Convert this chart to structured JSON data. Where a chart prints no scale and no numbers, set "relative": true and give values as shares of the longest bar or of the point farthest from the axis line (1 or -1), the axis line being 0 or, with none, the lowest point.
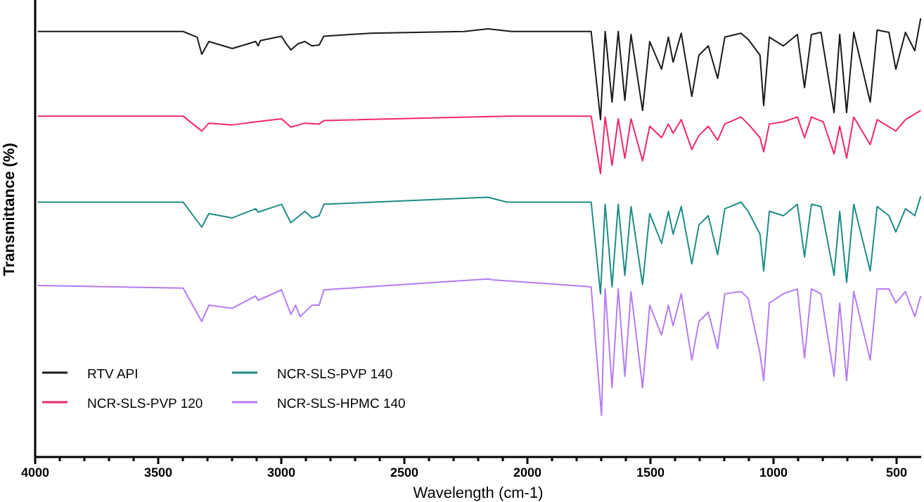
{
  "chart_data": {
    "type": "line",
    "relative": true,
    "xlabel": "Wavelength (cm-1)",
    "ylabel": "Transmittance (%)",
    "xlim": [
      4000,
      400
    ],
    "xticks": [
      4000,
      {
        "value": 3900,
        "label": null
      },
      {
        "value": 3800,
        "label": null
      },
      {
        "value": 3700,
        "label": null
      },
      {
        "value": 3600,
        "label": null
      },
      3500,
      {
        "value": 3400,
        "label": null
      },
      {
        "value": 3300,
        "label": null
      },
      {
        "value": 3200,
        "label": null
      },
      {
        "value": 3100,
        "label": null
      },
      3000,
      {
        "value": 2900,
        "label": null
      },
      {
        "value": 2800,
        "label": null
      },
      {
        "value": 2700,
        "label": null
      },
      {
        "value": 2600,
        "label": null
      },
      2500,
      {
        "value": 2400,
        "label": null
      },
      {
        "value": 2300,
        "label": null
      },
      {
        "value": 2200,
        "label": null
      },
      {
        "value": 2100,
        "label": null
      },
      2000,
      {
        "value": 1900,
        "label": null
      },
      {
        "value": 1800,
        "label": null
      },
      {
        "value": 1700,
        "label": null
      },
      {
        "value": 1600,
        "label": null
      },
      1500,
      {
        "value": 1400,
        "label": null
      },
      {
        "value": 1300,
        "label": null
      },
      {
        "value": 1200,
        "label": null
      },
      {
        "value": 1100,
        "label": null
      },
      1000,
      {
        "value": 900,
        "label": null
      },
      {
        "value": 800,
        "label": null
      },
      {
        "value": 700,
        "label": null
      },
      {
        "value": 600,
        "label": null
      },
      500
    ],
    "legend": "bottom left",
    "marker": "none",
    "line_style": "solid",
    "series": [
      {
        "name": "RTV API",
        "color": "#1a1a1a",
        "x": [
          3990,
          3399,
          3342,
          3323,
          3294,
          3247,
          3199,
          3151,
          3104,
          3094,
          3085,
          2999,
          2980,
          2961,
          2932,
          2904,
          2875,
          2846,
          2827,
          2637,
          2256,
          2160,
          2065,
          1741,
          1703,
          1684,
          1656,
          1631,
          1604,
          1579,
          1532,
          1503,
          1455,
          1427,
          1408,
          1375,
          1332,
          1303,
          1265,
          1227,
          1198,
          1132,
          1103,
          1055,
          1040,
          1017,
          960,
          903,
          874,
          846,
          807,
          754,
          731,
          703,
          674,
          607,
          579,
          531,
          503,
          464,
          426,
          402
        ],
        "values": [
          0.97,
          0.97,
          0.957,
          0.918,
          0.947,
          0.939,
          0.931,
          0.939,
          0.947,
          0.937,
          0.949,
          0.959,
          0.942,
          0.928,
          0.942,
          0.947,
          0.937,
          0.939,
          0.959,
          0.966,
          0.97,
          0.976,
          0.97,
          0.97,
          0.769,
          0.97,
          0.809,
          0.97,
          0.813,
          0.963,
          0.79,
          0.947,
          0.884,
          0.957,
          0.9,
          0.966,
          0.822,
          0.916,
          0.937,
          0.863,
          0.957,
          0.966,
          0.952,
          0.916,
          0.801,
          0.957,
          0.937,
          0.963,
          0.842,
          0.963,
          0.968,
          0.785,
          0.963,
          0.785,
          0.968,
          0.809,
          0.973,
          0.968,
          0.884,
          0.968,
          0.926,
          1
        ]
      },
      {
        "name": "NCR-SLS-PVP 120",
        "color": "#f0286e",
        "x": [
          3990,
          3399,
          3323,
          3294,
          3199,
          3104,
          2999,
          2961,
          2904,
          2846,
          2827,
          2084,
          1741,
          1703,
          1684,
          1656,
          1631,
          1604,
          1579,
          1532,
          1503,
          1455,
          1427,
          1408,
          1375,
          1332,
          1303,
          1265,
          1227,
          1198,
          1132,
          1103,
          1055,
          1040,
          1017,
          960,
          903,
          874,
          846,
          798,
          754,
          731,
          703,
          674,
          607,
          579,
          503,
          464,
          402
        ],
        "values": [
          0.777,
          0.777,
          0.743,
          0.761,
          0.757,
          0.764,
          0.771,
          0.752,
          0.761,
          0.759,
          0.767,
          0.777,
          0.777,
          0.646,
          0.775,
          0.665,
          0.771,
          0.681,
          0.771,
          0.675,
          0.754,
          0.728,
          0.759,
          0.738,
          0.769,
          0.701,
          0.733,
          0.754,
          0.722,
          0.759,
          0.775,
          0.759,
          0.728,
          0.696,
          0.759,
          0.764,
          0.775,
          0.728,
          0.775,
          0.764,
          0.691,
          0.754,
          0.681,
          0.775,
          0.712,
          0.769,
          0.743,
          0.769,
          0.79
        ]
      },
      {
        "name": "NCR-SLS-PVP 140",
        "color": "#1f8c86",
        "x": [
          3990,
          3399,
          3323,
          3294,
          3199,
          3104,
          3094,
          2999,
          2961,
          2904,
          2875,
          2846,
          2827,
          2160,
          2084,
          1741,
          1703,
          1684,
          1656,
          1631,
          1604,
          1579,
          1532,
          1503,
          1455,
          1427,
          1408,
          1375,
          1332,
          1303,
          1265,
          1227,
          1198,
          1132,
          1103,
          1055,
          1040,
          1017,
          960,
          903,
          874,
          846,
          807,
          754,
          731,
          703,
          674,
          607,
          579,
          531,
          503,
          464,
          426,
          402
        ],
        "values": [
          0.581,
          0.581,
          0.524,
          0.555,
          0.545,
          0.566,
          0.558,
          0.576,
          0.534,
          0.56,
          0.545,
          0.55,
          0.576,
          0.592,
          0.581,
          0.581,
          0.372,
          0.576,
          0.388,
          0.576,
          0.414,
          0.571,
          0.393,
          0.555,
          0.487,
          0.56,
          0.508,
          0.571,
          0.44,
          0.529,
          0.55,
          0.461,
          0.566,
          0.581,
          0.56,
          0.508,
          0.424,
          0.56,
          0.55,
          0.576,
          0.456,
          0.576,
          0.571,
          0.414,
          0.56,
          0.398,
          0.576,
          0.424,
          0.571,
          0.55,
          0.513,
          0.566,
          0.55,
          0.594
        ]
      },
      {
        "name": "NCR-SLS-HPMC 140",
        "color": "#b47cf4",
        "x": [
          3990,
          3399,
          3323,
          3294,
          3199,
          3104,
          3094,
          2999,
          2961,
          2942,
          2923,
          2875,
          2846,
          2827,
          2160,
          2142,
          1741,
          1699,
          1684,
          1656,
          1631,
          1604,
          1579,
          1532,
          1503,
          1455,
          1427,
          1408,
          1375,
          1332,
          1303,
          1265,
          1227,
          1198,
          1132,
          1103,
          1055,
          1040,
          1017,
          960,
          903,
          874,
          846,
          807,
          754,
          731,
          703,
          674,
          607,
          579,
          531,
          503,
          464,
          426,
          402
        ],
        "values": [
          0.391,
          0.385,
          0.309,
          0.346,
          0.339,
          0.367,
          0.357,
          0.381,
          0.325,
          0.346,
          0.32,
          0.346,
          0.346,
          0.381,
          0.406,
          0.404,
          0.388,
          0.095,
          0.383,
          0.158,
          0.383,
          0.184,
          0.377,
          0.158,
          0.346,
          0.278,
          0.346,
          0.299,
          0.372,
          0.221,
          0.309,
          0.33,
          0.247,
          0.372,
          0.377,
          0.362,
          0.236,
          0.174,
          0.351,
          0.372,
          0.383,
          0.226,
          0.383,
          0.372,
          0.184,
          0.351,
          0.174,
          0.377,
          0.221,
          0.383,
          0.383,
          0.351,
          0.377,
          0.32,
          0.367
        ]
      }
    ]
  }
}
